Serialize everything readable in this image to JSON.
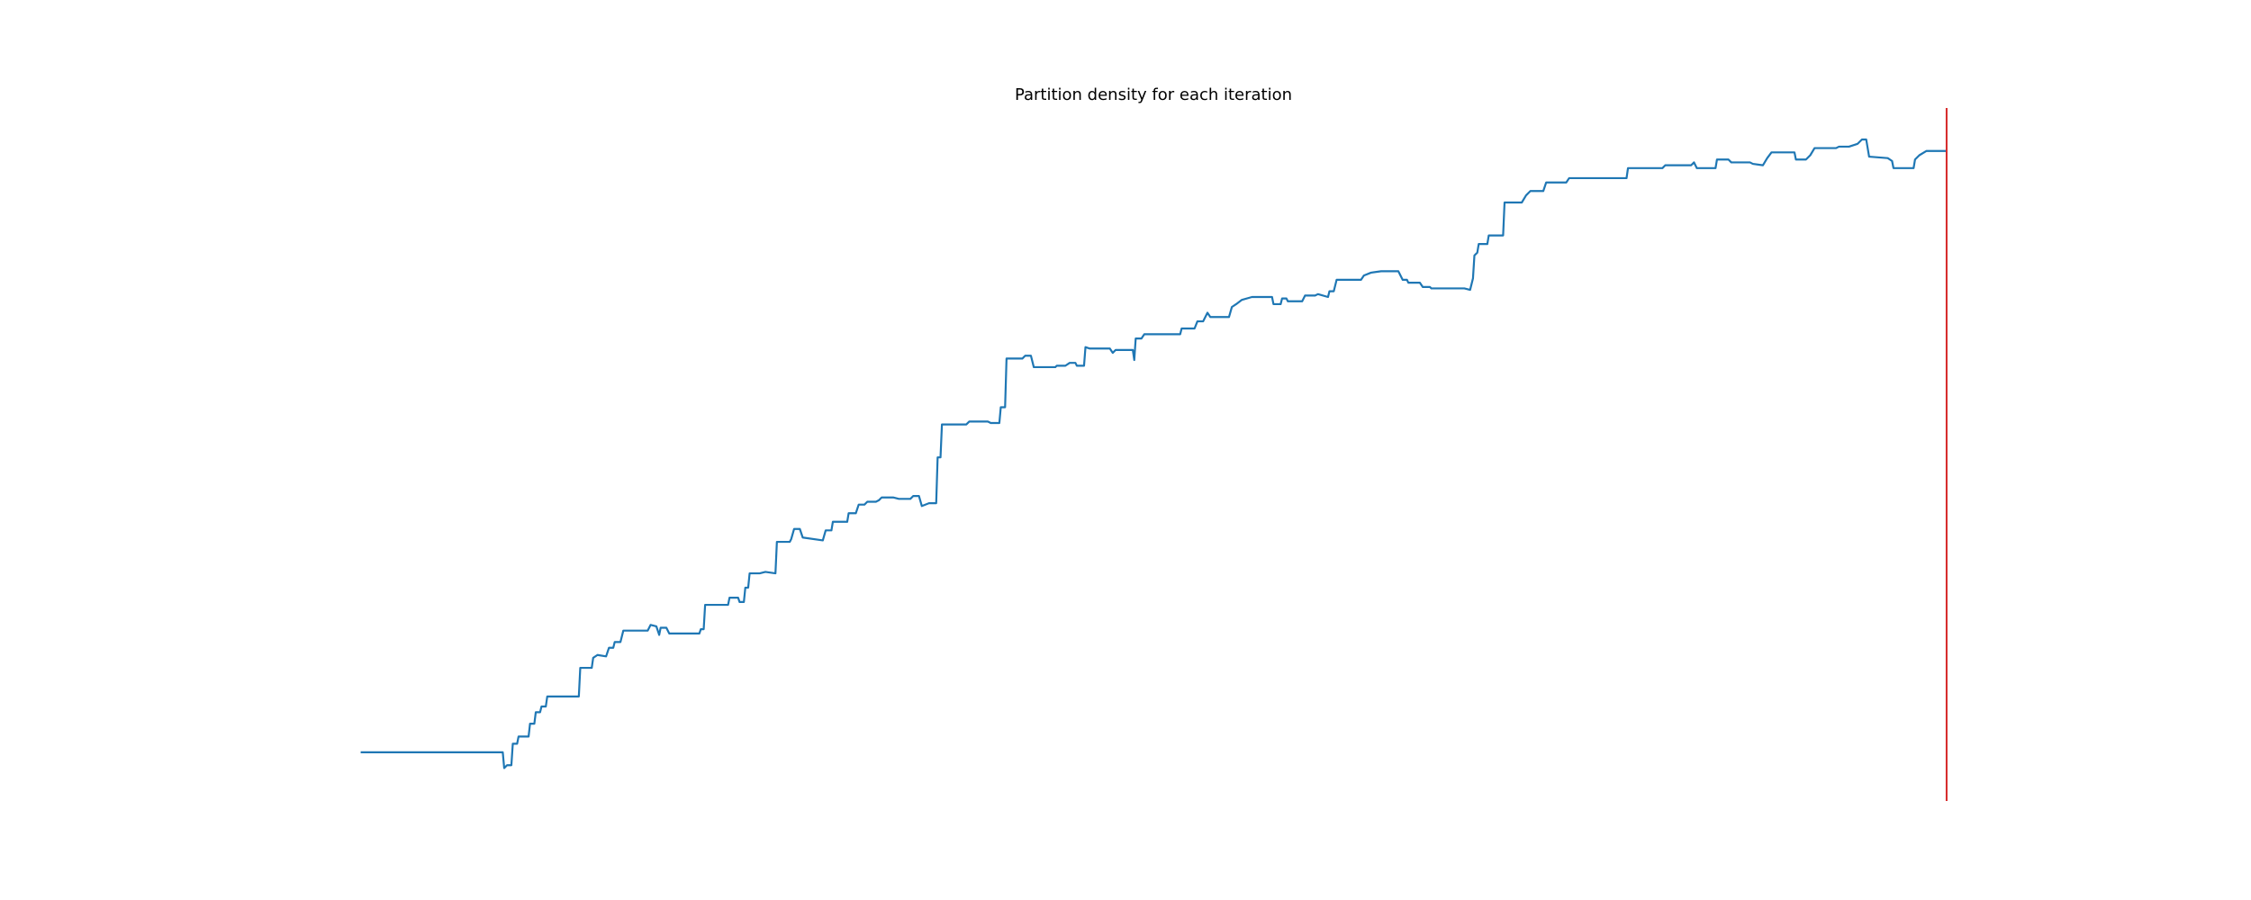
{
  "chart_data": {
    "type": "line",
    "title": "Partition density for each iteration",
    "x": [
      0,
      99,
      100,
      102,
      105,
      106,
      109,
      110,
      117,
      118,
      121,
      122,
      125,
      126,
      129,
      130,
      152,
      153,
      161,
      162,
      165,
      171,
      173,
      176,
      177,
      181,
      183,
      200,
      202,
      206,
      208,
      209,
      213,
      215,
      236,
      237,
      239,
      240,
      256,
      257,
      263,
      264,
      267,
      268,
      270,
      271,
      278,
      282,
      289,
      290,
      299,
      300,
      302,
      306,
      308,
      322,
      324,
      328,
      329,
      339,
      340,
      345,
      347,
      351,
      353,
      359,
      361,
      363,
      371,
      375,
      383,
      385,
      389,
      391,
      396,
      401,
      402,
      404,
      405,
      422,
      424,
      437,
      439,
      445,
      446,
      449,
      450,
      461,
      463,
      467,
      469,
      484,
      485,
      491,
      494,
      498,
      499,
      504,
      505,
      508,
      522,
      524,
      526,
      538,
      539,
      540,
      544,
      546,
      557,
      571,
      572,
      581,
      583,
      587,
      590,
      592,
      605,
      607,
      610,
      614,
      621,
      635,
      636,
      641,
      642,
      645,
      646,
      656,
      658,
      665,
      667,
      674,
      675,
      678,
      680,
      697,
      699,
      704,
      711,
      723,
      726,
      729,
      730,
      738,
      740,
      745,
      746,
      769,
      773,
      775,
      776,
      778,
      779,
      785,
      786,
      796,
      797,
      809,
      812,
      815,
      824,
      826,
      840,
      842,
      869,
      873,
      882,
      883,
      907,
      909,
      927,
      929,
      931,
      944,
      945,
      953,
      955,
      968,
      970,
      977,
      980,
      983,
      999,
      1000,
      1007,
      1010,
      1013,
      1028,
      1030,
      1037,
      1043,
      1046,
      1049,
      1051,
      1064,
      1067,
      1068,
      1082,
      1083,
      1086,
      1091,
      1105
    ],
    "series": [
      {
        "color": "#1f77b4",
        "values": [
          0.035,
          0.035,
          0.024,
          0.026,
          0.026,
          0.041,
          0.041,
          0.046,
          0.046,
          0.055,
          0.055,
          0.063,
          0.063,
          0.067,
          0.067,
          0.074,
          0.074,
          0.094,
          0.094,
          0.101,
          0.103,
          0.102,
          0.108,
          0.108,
          0.112,
          0.112,
          0.12,
          0.12,
          0.124,
          0.123,
          0.117,
          0.122,
          0.122,
          0.118,
          0.118,
          0.121,
          0.121,
          0.138,
          0.138,
          0.143,
          0.143,
          0.14,
          0.14,
          0.15,
          0.15,
          0.16,
          0.16,
          0.161,
          0.16,
          0.182,
          0.182,
          0.184,
          0.191,
          0.191,
          0.185,
          0.183,
          0.19,
          0.19,
          0.196,
          0.196,
          0.202,
          0.202,
          0.208,
          0.208,
          0.21,
          0.21,
          0.211,
          0.213,
          0.213,
          0.212,
          0.212,
          0.214,
          0.214,
          0.207,
          0.209,
          0.209,
          0.241,
          0.241,
          0.264,
          0.264,
          0.266,
          0.266,
          0.265,
          0.265,
          0.276,
          0.276,
          0.31,
          0.31,
          0.312,
          0.312,
          0.304,
          0.304,
          0.305,
          0.305,
          0.307,
          0.307,
          0.305,
          0.305,
          0.318,
          0.317,
          0.317,
          0.314,
          0.316,
          0.316,
          0.309,
          0.324,
          0.324,
          0.327,
          0.327,
          0.327,
          0.331,
          0.331,
          0.336,
          0.336,
          0.342,
          0.339,
          0.339,
          0.346,
          0.348,
          0.351,
          0.353,
          0.353,
          0.348,
          0.348,
          0.352,
          0.352,
          0.35,
          0.35,
          0.354,
          0.354,
          0.355,
          0.353,
          0.357,
          0.357,
          0.365,
          0.365,
          0.368,
          0.37,
          0.371,
          0.371,
          0.365,
          0.365,
          0.363,
          0.363,
          0.36,
          0.36,
          0.359,
          0.359,
          0.358,
          0.366,
          0.382,
          0.384,
          0.39,
          0.39,
          0.396,
          0.396,
          0.419,
          0.419,
          0.424,
          0.427,
          0.427,
          0.433,
          0.433,
          0.436,
          0.436,
          0.436,
          0.436,
          0.443,
          0.443,
          0.445,
          0.445,
          0.447,
          0.443,
          0.443,
          0.449,
          0.449,
          0.447,
          0.447,
          0.446,
          0.445,
          0.45,
          0.454,
          0.454,
          0.449,
          0.449,
          0.452,
          0.457,
          0.457,
          0.458,
          0.458,
          0.46,
          0.463,
          0.463,
          0.451,
          0.45,
          0.448,
          0.443,
          0.443,
          0.449,
          0.452,
          0.455,
          0.455
        ]
      }
    ],
    "xlim": [
      -55.25,
      1160.25
    ],
    "ylim": [
      0.001,
      0.485
    ],
    "vline": {
      "x": 1105,
      "color": "#d62728"
    }
  }
}
